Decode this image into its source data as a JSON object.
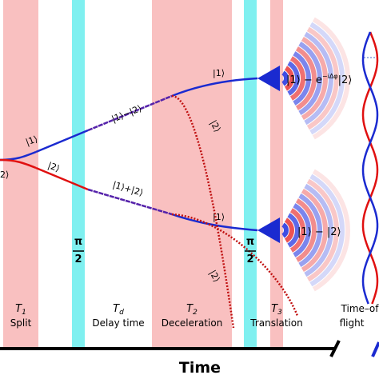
{
  "stages": [
    {
      "symbol": "T",
      "sub": "1",
      "name": "Split"
    },
    {
      "symbol": "T",
      "sub": "d",
      "name": "Delay time"
    },
    {
      "symbol": "T",
      "sub": "2",
      "name": "Deceleration"
    },
    {
      "symbol": "T",
      "sub": "3",
      "name": "Translation"
    }
  ],
  "tof": {
    "line1": "Time–of",
    "line2": "flight"
  },
  "pulses": [
    {
      "num": "π",
      "den": "2"
    },
    {
      "num": "π",
      "den": "2"
    }
  ],
  "states": {
    "initial": "2⟩",
    "split_upper": "|1⟩",
    "split_lower": "|2⟩",
    "arm_upper": "|1⟩−|2⟩",
    "arm_lower": "|1⟩+|2⟩",
    "upper_kept": "|1⟩",
    "upper_dropped": "|2⟩",
    "lower_kept": "|1⟩",
    "lower_dropped": "|2⟩",
    "upper_final": {
      "before": "|1⟩ − e",
      "exponent": "−iΔφ",
      "after": "|2⟩"
    },
    "lower_final": "|1⟩ − |2⟩"
  },
  "axis_label": "Time"
}
